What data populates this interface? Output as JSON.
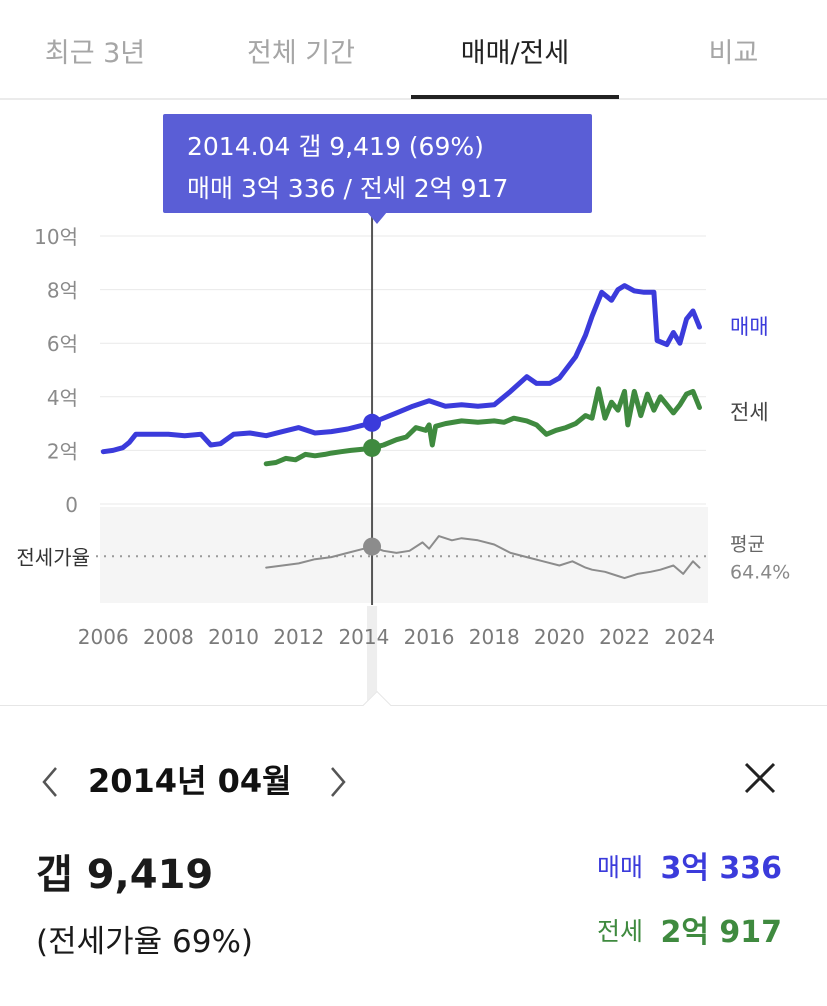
{
  "tabs": [
    {
      "label": "최근 3년",
      "active": false
    },
    {
      "label": "전체 기간",
      "active": false
    },
    {
      "label": "매매/전세",
      "active": true
    },
    {
      "label": "비교",
      "active": false
    }
  ],
  "tooltip": {
    "line1": "2014.04  갭 9,419 (69%)",
    "line2": "매매 3억 336 / 전세 2억 917"
  },
  "colors": {
    "sale": "#3b3bdb",
    "lease": "#3f8a3f",
    "ratio": "#8c8c8c",
    "tooltip_bg": "#5a5ed6"
  },
  "chart_data": {
    "type": "line",
    "x_ticks": [
      "2006",
      "2008",
      "2010",
      "2012",
      "2014",
      "2016",
      "2018",
      "2020",
      "2022",
      "2024"
    ],
    "y_ticks": [
      "10억",
      "8억",
      "6억",
      "4억",
      "2억",
      "0"
    ],
    "ylim": [
      0,
      10
    ],
    "xlim": [
      2005.9,
      2024.5
    ],
    "grid": true,
    "ratio_band_label": "전세가율",
    "ratio_average": {
      "label": "평균",
      "value": "64.4%",
      "numeric": 64.4
    },
    "ratio_ylim": [
      45,
      85
    ],
    "selected": {
      "x": 2014.25,
      "sale": 3.03,
      "lease": 2.09,
      "ratio": 69
    },
    "series": [
      {
        "name": "매매",
        "key": "sale",
        "points": [
          [
            2006.0,
            1.95
          ],
          [
            2006.3,
            2.0
          ],
          [
            2006.6,
            2.1
          ],
          [
            2006.8,
            2.3
          ],
          [
            2007.0,
            2.6
          ],
          [
            2007.5,
            2.6
          ],
          [
            2008.0,
            2.6
          ],
          [
            2008.5,
            2.55
          ],
          [
            2009.0,
            2.6
          ],
          [
            2009.3,
            2.2
          ],
          [
            2009.6,
            2.25
          ],
          [
            2010.0,
            2.6
          ],
          [
            2010.5,
            2.65
          ],
          [
            2011.0,
            2.55
          ],
          [
            2011.5,
            2.7
          ],
          [
            2012.0,
            2.85
          ],
          [
            2012.5,
            2.65
          ],
          [
            2013.0,
            2.7
          ],
          [
            2013.5,
            2.8
          ],
          [
            2014.0,
            2.95
          ],
          [
            2014.25,
            3.03
          ],
          [
            2014.6,
            3.2
          ],
          [
            2015.0,
            3.4
          ],
          [
            2015.5,
            3.65
          ],
          [
            2016.0,
            3.85
          ],
          [
            2016.5,
            3.65
          ],
          [
            2017.0,
            3.7
          ],
          [
            2017.5,
            3.65
          ],
          [
            2018.0,
            3.7
          ],
          [
            2018.5,
            4.2
          ],
          [
            2019.0,
            4.75
          ],
          [
            2019.3,
            4.5
          ],
          [
            2019.7,
            4.5
          ],
          [
            2020.0,
            4.7
          ],
          [
            2020.5,
            5.5
          ],
          [
            2020.8,
            6.3
          ],
          [
            2021.0,
            7.0
          ],
          [
            2021.3,
            7.9
          ],
          [
            2021.6,
            7.6
          ],
          [
            2021.8,
            8.0
          ],
          [
            2022.0,
            8.15
          ],
          [
            2022.3,
            7.95
          ],
          [
            2022.6,
            7.9
          ],
          [
            2022.9,
            7.9
          ],
          [
            2023.0,
            6.1
          ],
          [
            2023.3,
            5.95
          ],
          [
            2023.5,
            6.4
          ],
          [
            2023.7,
            6.0
          ],
          [
            2023.9,
            6.9
          ],
          [
            2024.1,
            7.2
          ],
          [
            2024.3,
            6.6
          ]
        ]
      },
      {
        "name": "전세",
        "key": "lease",
        "points": [
          [
            2011.0,
            1.5
          ],
          [
            2011.3,
            1.55
          ],
          [
            2011.6,
            1.7
          ],
          [
            2011.9,
            1.65
          ],
          [
            2012.2,
            1.85
          ],
          [
            2012.5,
            1.8
          ],
          [
            2012.8,
            1.85
          ],
          [
            2013.0,
            1.9
          ],
          [
            2013.3,
            1.95
          ],
          [
            2013.6,
            2.0
          ],
          [
            2014.0,
            2.05
          ],
          [
            2014.25,
            2.09
          ],
          [
            2014.6,
            2.2
          ],
          [
            2015.0,
            2.4
          ],
          [
            2015.3,
            2.5
          ],
          [
            2015.6,
            2.85
          ],
          [
            2015.9,
            2.75
          ],
          [
            2016.0,
            2.95
          ],
          [
            2016.1,
            2.2
          ],
          [
            2016.2,
            2.9
          ],
          [
            2016.5,
            3.0
          ],
          [
            2017.0,
            3.1
          ],
          [
            2017.5,
            3.05
          ],
          [
            2018.0,
            3.1
          ],
          [
            2018.3,
            3.05
          ],
          [
            2018.6,
            3.2
          ],
          [
            2019.0,
            3.1
          ],
          [
            2019.3,
            2.95
          ],
          [
            2019.6,
            2.6
          ],
          [
            2019.9,
            2.75
          ],
          [
            2020.2,
            2.85
          ],
          [
            2020.5,
            3.0
          ],
          [
            2020.8,
            3.3
          ],
          [
            2021.0,
            3.2
          ],
          [
            2021.2,
            4.3
          ],
          [
            2021.4,
            3.2
          ],
          [
            2021.6,
            3.8
          ],
          [
            2021.8,
            3.5
          ],
          [
            2022.0,
            4.2
          ],
          [
            2022.1,
            2.95
          ],
          [
            2022.3,
            4.2
          ],
          [
            2022.5,
            3.3
          ],
          [
            2022.7,
            4.1
          ],
          [
            2022.9,
            3.5
          ],
          [
            2023.1,
            4.0
          ],
          [
            2023.3,
            3.7
          ],
          [
            2023.5,
            3.4
          ],
          [
            2023.7,
            3.7
          ],
          [
            2023.9,
            4.1
          ],
          [
            2024.1,
            4.2
          ],
          [
            2024.3,
            3.6
          ]
        ]
      },
      {
        "name": "전세가율",
        "key": "ratio",
        "points": [
          [
            2011.0,
            59
          ],
          [
            2011.5,
            60
          ],
          [
            2012.0,
            61
          ],
          [
            2012.5,
            63
          ],
          [
            2013.0,
            64
          ],
          [
            2013.5,
            66
          ],
          [
            2014.0,
            68
          ],
          [
            2014.25,
            69
          ],
          [
            2014.6,
            67
          ],
          [
            2015.0,
            66
          ],
          [
            2015.4,
            67
          ],
          [
            2015.8,
            71
          ],
          [
            2016.0,
            68
          ],
          [
            2016.3,
            74
          ],
          [
            2016.7,
            72
          ],
          [
            2017.0,
            73
          ],
          [
            2017.5,
            72
          ],
          [
            2018.0,
            70
          ],
          [
            2018.5,
            66
          ],
          [
            2019.0,
            64
          ],
          [
            2019.5,
            62
          ],
          [
            2020.0,
            60
          ],
          [
            2020.4,
            62
          ],
          [
            2020.8,
            59
          ],
          [
            2021.0,
            58
          ],
          [
            2021.4,
            57
          ],
          [
            2021.8,
            55
          ],
          [
            2022.0,
            54
          ],
          [
            2022.4,
            56
          ],
          [
            2022.8,
            57
          ],
          [
            2023.1,
            58
          ],
          [
            2023.5,
            60
          ],
          [
            2023.8,
            56
          ],
          [
            2024.1,
            62
          ],
          [
            2024.3,
            59
          ]
        ]
      }
    ]
  },
  "detail": {
    "period": "2014년 04월",
    "gap": "갭 9,419",
    "ratio": "(전세가율 69%)",
    "sale_label": "매매",
    "sale_value": "3억 336",
    "lease_label": "전세",
    "lease_value": "2억 917"
  },
  "icons": {
    "prev": "chevron-left-icon",
    "next": "chevron-right-icon",
    "close": "close-icon"
  }
}
